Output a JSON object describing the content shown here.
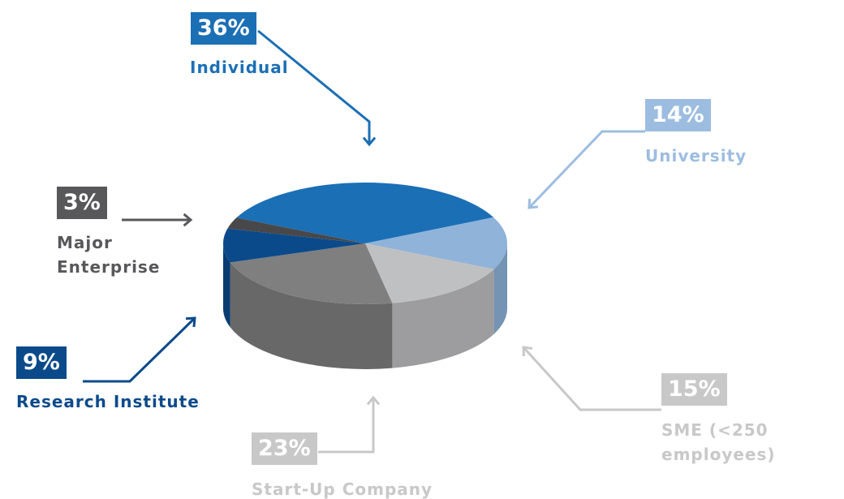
{
  "chart_data": {
    "type": "pie3d",
    "categories": [
      "Individual",
      "University",
      "SME (<250 employees)",
      "Start-Up Company",
      "Research Institute",
      "Major Enterprise"
    ],
    "values": [
      36,
      14,
      15,
      23,
      9,
      3
    ],
    "value_labels": [
      "36%",
      "14%",
      "15%",
      "23%",
      "9%",
      "3%"
    ],
    "colors": [
      "#1b6fb5",
      "#8fb3d9",
      "#bfc0c2",
      "#7f7f80",
      "#0b4a8a",
      "#48484a"
    ],
    "label_colors": [
      "#1b6fb5",
      "#9dbde0",
      "#c8c8c8",
      "#c8c8c8",
      "#0b4a8a",
      "#58585a"
    ]
  }
}
